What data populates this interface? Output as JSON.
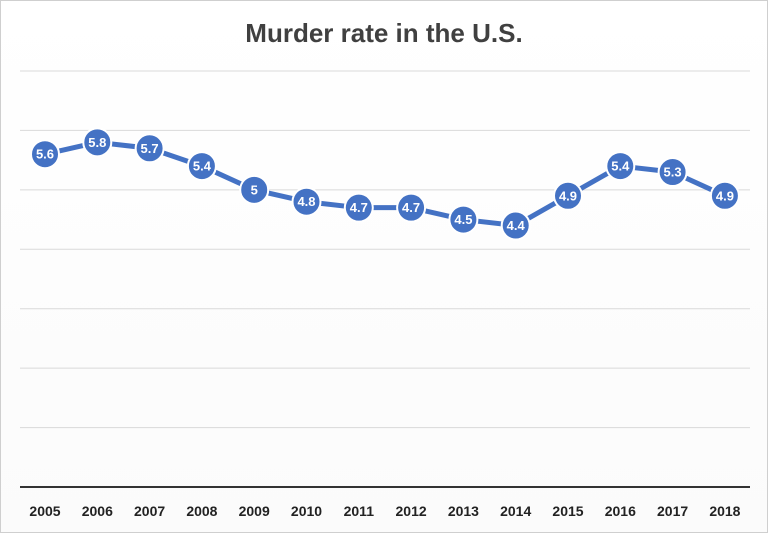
{
  "chart_data": {
    "type": "line",
    "title": "Murder rate in the U.S.",
    "xlabel": "",
    "ylabel": "",
    "categories": [
      "2005",
      "2006",
      "2007",
      "2008",
      "2009",
      "2010",
      "2011",
      "2012",
      "2013",
      "2014",
      "2015",
      "2016",
      "2017",
      "2018"
    ],
    "series": [
      {
        "values": [
          5.6,
          5.8,
          5.7,
          5.4,
          5.0,
          4.8,
          4.7,
          4.7,
          4.5,
          4.4,
          4.9,
          5.4,
          5.3,
          4.9
        ],
        "labels": [
          "5.6",
          "5.8",
          "5.7",
          "5.4",
          "5",
          "4.8",
          "4.7",
          "4.7",
          "4.5",
          "4.4",
          "4.9",
          "5.4",
          "5.3",
          "4.9"
        ]
      }
    ],
    "ylim": [
      0,
      7
    ],
    "grid": true,
    "legend": "none",
    "color": "#4472c4"
  }
}
